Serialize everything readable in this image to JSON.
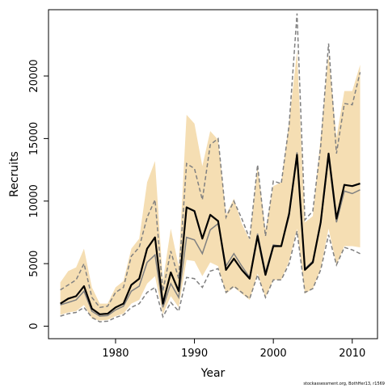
{
  "chart_data": {
    "type": "line",
    "title": "",
    "xlabel": "Year",
    "ylabel": "Recruits",
    "footnote": "stockassessment.org, BothHer13, r1569",
    "xlim": [
      1971.5,
      2013.2
    ],
    "ylim": [
      -1000,
      25300
    ],
    "xticks": [
      1980,
      1990,
      2000,
      2010
    ],
    "yticks": [
      0,
      5000,
      10000,
      15000,
      20000
    ],
    "grid": false,
    "legend": "none",
    "colors": {
      "band": "#f5deb3",
      "main": "#000000",
      "grey_line": "#808080",
      "dashed": "#808080"
    },
    "x": [
      1973,
      1974,
      1975,
      1976,
      1977,
      1978,
      1979,
      1980,
      1981,
      1982,
      1983,
      1984,
      1985,
      1986,
      1987,
      1988,
      1989,
      1990,
      1991,
      1992,
      1993,
      1994,
      1995,
      1996,
      1997,
      1998,
      1999,
      2000,
      2001,
      2002,
      2003,
      2004,
      2005,
      2006,
      2007,
      2008,
      2009,
      2010,
      2011
    ],
    "series": [
      {
        "role": "estimate",
        "values": [
          1800,
          2200,
          2400,
          3200,
          1400,
          950,
          1000,
          1500,
          1800,
          3300,
          3800,
          6200,
          7100,
          1800,
          4300,
          2800,
          9500,
          9200,
          7000,
          8900,
          8400,
          4500,
          5400,
          4500,
          3800,
          7200,
          4100,
          6400,
          6400,
          9000,
          13700,
          4500,
          5100,
          8300,
          13800,
          8600,
          11300,
          11200,
          11400
        ]
      },
      {
        "role": "upper-band",
        "values": [
          3500,
          4400,
          4700,
          6200,
          3100,
          1800,
          1800,
          3100,
          3600,
          6200,
          7000,
          11500,
          13200,
          3600,
          7800,
          4800,
          16900,
          16200,
          12800,
          15600,
          14900,
          8900,
          10200,
          8200,
          6900,
          12800,
          7700,
          11200,
          11500,
          16300,
          22000,
          8300,
          8800,
          15100,
          21700,
          15100,
          18800,
          18800,
          20900
        ]
      },
      {
        "role": "lower-band",
        "values": [
          900,
          1100,
          1200,
          1700,
          600,
          450,
          500,
          800,
          1000,
          1800,
          2100,
          3400,
          4000,
          950,
          2400,
          1500,
          5300,
          5200,
          4000,
          5100,
          4800,
          2600,
          3100,
          2600,
          2100,
          4200,
          2300,
          3700,
          3700,
          5200,
          7800,
          2600,
          3000,
          4600,
          7800,
          4900,
          6400,
          6400,
          6300
        ]
      },
      {
        "role": "grey-line",
        "values": [
          1700,
          1900,
          2100,
          2800,
          1200,
          800,
          850,
          1300,
          1600,
          2800,
          3200,
          5100,
          5700,
          1500,
          3400,
          2300,
          7100,
          6900,
          5800,
          7700,
          8200,
          4800,
          5800,
          4800,
          3900,
          7400,
          4300,
          6500,
          6400,
          8800,
          13900,
          4600,
          5200,
          8200,
          13500,
          8300,
          10800,
          10600,
          10900
        ]
      },
      {
        "role": "upper-dashed",
        "values": [
          2900,
          3300,
          3700,
          5000,
          2300,
          1500,
          1600,
          2700,
          3100,
          5600,
          6300,
          8700,
          10100,
          2800,
          6000,
          3800,
          13000,
          12600,
          10100,
          14500,
          15000,
          8700,
          10000,
          8600,
          7000,
          12900,
          7200,
          11600,
          11400,
          16100,
          25000,
          8500,
          9200,
          14400,
          22600,
          13800,
          17800,
          17700,
          20300
        ]
      },
      {
        "role": "lower-dashed",
        "values": [
          800,
          1000,
          1100,
          1500,
          700,
          350,
          400,
          700,
          900,
          1500,
          1800,
          2700,
          3100,
          750,
          1900,
          1200,
          3900,
          3800,
          3100,
          4400,
          4600,
          2700,
          3200,
          2700,
          2200,
          4100,
          2300,
          3700,
          3700,
          5000,
          7600,
          2700,
          3000,
          4500,
          7300,
          4900,
          6300,
          6100,
          5800
        ]
      }
    ]
  }
}
